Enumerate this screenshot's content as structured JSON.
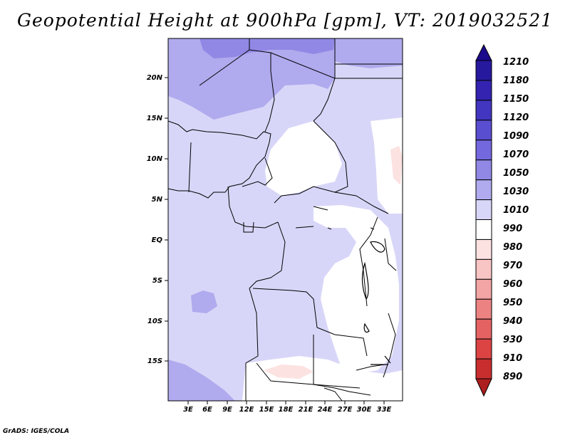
{
  "title": "Geopotential Height at 900hPa [gpm], VT: 2019032521",
  "credit": "GrADS: IGES/COLA",
  "map": {
    "lon_range": [
      0,
      36
    ],
    "lat_range": [
      -20,
      25
    ],
    "y_ticks": [
      "20N",
      "15N",
      "10N",
      "5N",
      "EQ",
      "5S",
      "10S",
      "15S"
    ],
    "x_ticks": [
      "3E",
      "6E",
      "9E",
      "12E",
      "15E",
      "18E",
      "21E",
      "24E",
      "27E",
      "30E",
      "33E"
    ]
  },
  "colorbar": {
    "levels": [
      "1210",
      "1180",
      "1150",
      "1120",
      "1090",
      "1070",
      "1050",
      "1030",
      "1010",
      "990",
      "980",
      "970",
      "960",
      "950",
      "940",
      "930",
      "910",
      "890"
    ],
    "colors": [
      "#1c0a8c",
      "#27199e",
      "#3323b0",
      "#4236c0",
      "#5a4ed0",
      "#7468de",
      "#9088e4",
      "#b0aaee",
      "#d8d6f8",
      "#ffffff",
      "#fde2e2",
      "#f9c4c4",
      "#f3a4a4",
      "#ec8282",
      "#e46262",
      "#dc4444",
      "#c82e2e",
      "#ad1e1e"
    ]
  }
}
